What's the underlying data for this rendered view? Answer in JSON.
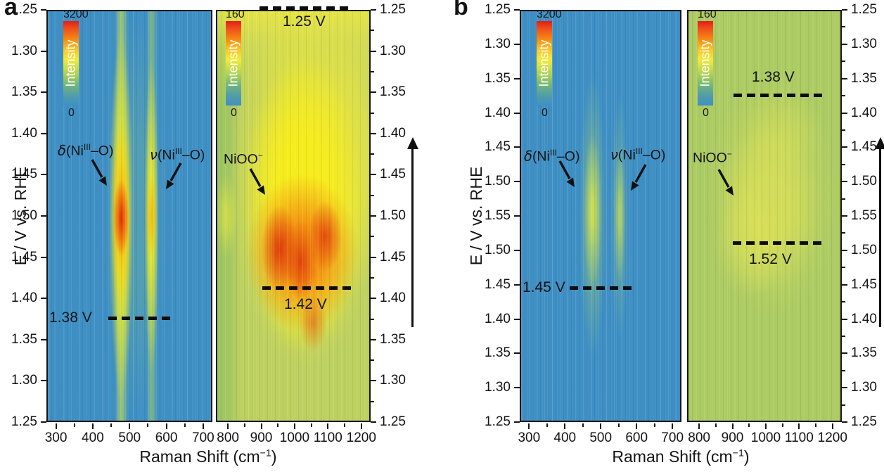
{
  "figure": {
    "panel_a_letter": "a",
    "panel_b_letter": "b",
    "y_axis_title": "E / V vs. RHE",
    "x_axis_title": {
      "main": "Raman Shift (cm",
      "sup": "−1",
      "close": ")"
    },
    "scan_direction": "up"
  },
  "panel_a": {
    "y_ticks": [
      "1.25",
      "1.30",
      "1.35",
      "1.40",
      "1.45",
      "1.50",
      "1.45",
      "1.40",
      "1.35",
      "1.30",
      "1.25"
    ],
    "low": {
      "x_ticks": [
        "300",
        "400",
        "500",
        "600",
        "700"
      ],
      "colorbar": {
        "max": "3200",
        "label": "Intensity",
        "min": "0"
      },
      "ann_delta": {
        "sym": "δ",
        "pre": "(Ni",
        "sup": "III",
        "post": "–O)"
      },
      "ann_nu": {
        "sym": "ν",
        "pre": "(Ni",
        "sup": "III",
        "post": "–O)"
      },
      "dash_onset": "1.38 V"
    },
    "high": {
      "x_ticks": [
        "800",
        "900",
        "1000",
        "1100",
        "1200"
      ],
      "colorbar": {
        "max": "160",
        "label": "Intensity",
        "min": "0"
      },
      "ann_nioo": {
        "base": "NiOO",
        "sup": "−"
      },
      "dash_top": "1.25 V",
      "dash_onset": "1.42 V"
    }
  },
  "panel_b": {
    "y_ticks": [
      "1.25",
      "1.30",
      "1.35",
      "1.40",
      "1.45",
      "1.50",
      "1.55",
      "1.50",
      "1.45",
      "1.40",
      "1.35",
      "1.30",
      "1.25"
    ],
    "low": {
      "x_ticks": [
        "300",
        "400",
        "500",
        "600",
        "700"
      ],
      "colorbar": {
        "max": "3200",
        "label": "Intensity",
        "min": "0"
      },
      "ann_delta": {
        "sym": "δ",
        "pre": "(Ni",
        "sup": "III",
        "post": "–O)"
      },
      "ann_nu": {
        "sym": "ν",
        "pre": "(Ni",
        "sup": "III",
        "post": "–O)"
      },
      "dash_onset": "1.45 V"
    },
    "high": {
      "x_ticks": [
        "800",
        "900",
        "1000",
        "1100",
        "1200"
      ],
      "colorbar": {
        "max": "160",
        "label": "Intensity",
        "min": "0"
      },
      "ann_nioo": {
        "base": "NiOO",
        "sup": "−"
      },
      "dash_upper": "1.38 V",
      "dash_lower": "1.52 V"
    }
  },
  "chart_data": [
    {
      "type": "heatmap",
      "panel": "a",
      "subpanel": "low wavenumber",
      "xlabel": "Raman Shift (cm−1)",
      "ylabel": "E / V vs. RHE",
      "x_ticks": [
        300,
        400,
        500,
        600,
        700
      ],
      "y_tick_sequence": [
        1.25,
        1.3,
        1.35,
        1.4,
        1.45,
        1.5,
        1.45,
        1.4,
        1.35,
        1.3,
        1.25
      ],
      "potential_program": "cyclic sweep 1.25 V up to 1.50 V and back to 1.25 V, time running bottom to top (arrow up)",
      "colorbar": {
        "label": "Intensity",
        "min": 0,
        "max": 3200
      },
      "bands": [
        {
          "assignment": "δ(NiIII–O)",
          "center_cm1": 475,
          "max_intensity_near_V": 1.5,
          "peak_level": "red (near max)"
        },
        {
          "assignment": "ν(NiIII–O)",
          "center_cm1": 555,
          "max_intensity_near_V": 1.5,
          "peak_level": "yellow-orange"
        }
      ],
      "dashed_markers_V": [
        1.38
      ],
      "background": "blue (near-zero intensity)"
    },
    {
      "type": "heatmap",
      "panel": "a",
      "subpanel": "high wavenumber",
      "x_ticks": [
        800,
        900,
        1000,
        1100,
        1200
      ],
      "y_tick_sequence": [
        1.25,
        1.3,
        1.35,
        1.4,
        1.45,
        1.5,
        1.45,
        1.4,
        1.35,
        1.3,
        1.25
      ],
      "colorbar": {
        "label": "Intensity",
        "min": 0,
        "max": 160
      },
      "bands": [
        {
          "assignment": "NiOO−",
          "center_cm1_range": [
            900,
            1150
          ],
          "max_intensity_near_V": 1.5,
          "peak_level": "red-orange blob"
        }
      ],
      "dashed_markers_V": [
        1.25,
        1.42
      ],
      "background": "yellow-green (broad elevated intensity)"
    },
    {
      "type": "heatmap",
      "panel": "b",
      "subpanel": "low wavenumber",
      "x_ticks": [
        300,
        400,
        500,
        600,
        700
      ],
      "y_tick_sequence": [
        1.25,
        1.3,
        1.35,
        1.4,
        1.45,
        1.5,
        1.55,
        1.5,
        1.45,
        1.4,
        1.35,
        1.3,
        1.25
      ],
      "potential_program": "cyclic sweep 1.25 V up to 1.55 V and back to 1.25 V, time running bottom to top (arrow up)",
      "colorbar": {
        "label": "Intensity",
        "min": 0,
        "max": 3200
      },
      "bands": [
        {
          "assignment": "δ(NiIII–O)",
          "center_cm1": 480,
          "max_intensity_near_V": 1.52,
          "peak_level": "faint yellow-green"
        },
        {
          "assignment": "ν(NiIII–O)",
          "center_cm1": 555,
          "max_intensity_near_V": 1.52,
          "peak_level": "very faint"
        }
      ],
      "dashed_markers_V": [
        1.45
      ],
      "background": "blue (near-zero intensity)"
    },
    {
      "type": "heatmap",
      "panel": "b",
      "subpanel": "high wavenumber",
      "x_ticks": [
        800,
        900,
        1000,
        1100,
        1200
      ],
      "y_tick_sequence": [
        1.25,
        1.3,
        1.35,
        1.4,
        1.45,
        1.5,
        1.55,
        1.5,
        1.45,
        1.4,
        1.35,
        1.3,
        1.25
      ],
      "colorbar": {
        "label": "Intensity",
        "min": 0,
        "max": 160
      },
      "bands": [
        {
          "assignment": "NiOO−",
          "center_cm1_range": [
            900,
            1150
          ],
          "max_intensity_near_V": 1.53,
          "peak_level": "weak diffuse yellow"
        }
      ],
      "dashed_markers_V": [
        1.38,
        1.52
      ],
      "background": "green (low intensity)"
    }
  ]
}
